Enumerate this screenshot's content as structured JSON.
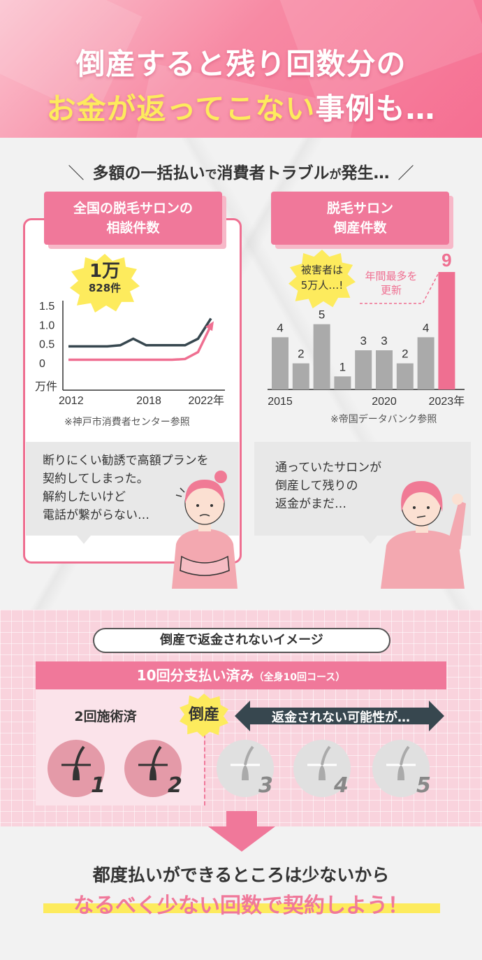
{
  "header": {
    "line1": "倒産すると残り回数分の",
    "line2_highlight": "お金が返ってこない",
    "line2_rest": "事例も…"
  },
  "subtitle": {
    "part1": "多額の一括払い",
    "part2": "で",
    "part3": "消費者トラブル",
    "part4": "が",
    "part5": "発生…"
  },
  "left_panel": {
    "tag_line1": "全国の脱毛サロンの",
    "tag_line2": "相談件数",
    "burst_big": "1万",
    "burst_small": "828件",
    "unit": "万件",
    "source": "※神戸市消費者センター参照",
    "speech": [
      "断りにくい勧誘で高額プランを",
      "契約してしまった。",
      "解約したいけど",
      "電話が繋がらない…"
    ]
  },
  "right_panel": {
    "tag_line1": "脱毛サロン",
    "tag_line2": "倒産件数",
    "burst_line1": "被害者は",
    "burst_line2": "5万人…!",
    "annot_line1": "年間最多を",
    "annot_line2": "更新",
    "source": "※帝国データバンク参照",
    "speech": [
      "通っていたサロンが",
      "倒産して残りの",
      "返金がまだ…"
    ]
  },
  "chart_data": [
    {
      "type": "line",
      "title": "全国の脱毛サロンの相談件数",
      "x_tick_labels": [
        "2012",
        "2018",
        "2022年"
      ],
      "y_tick_labels": [
        "1.5",
        "1.0",
        "0.5",
        "0"
      ],
      "ylabel": "万件",
      "ylim": [
        0,
        1.5
      ],
      "series": [
        {
          "x": [
            2012,
            2013,
            2014,
            2015,
            2016,
            2017,
            2018,
            2019,
            2020,
            2021,
            2022,
            2023
          ],
          "values": [
            0.45,
            0.45,
            0.45,
            0.45,
            0.48,
            0.65,
            0.48,
            0.48,
            0.48,
            0.48,
            0.65,
            1.18
          ]
        },
        {
          "x": [
            2012,
            2013,
            2014,
            2015,
            2016,
            2017,
            2018,
            2019,
            2020,
            2021,
            2022,
            2023
          ],
          "values": [
            0.1,
            0.1,
            0.1,
            0.1,
            0.1,
            0.1,
            0.1,
            0.1,
            0.1,
            0.12,
            0.3,
            1.0
          ]
        }
      ],
      "series_colors": [
        "#37474f",
        "#ef6f91"
      ]
    },
    {
      "type": "bar",
      "title": "脱毛サロン倒産件数",
      "categories": [
        "2015",
        "2016",
        "2017",
        "2018",
        "2019",
        "2020",
        "2021",
        "2022",
        "2023年"
      ],
      "x_tick_labels": [
        "2015",
        "2020",
        "2023年"
      ],
      "values": [
        4,
        2,
        5,
        1,
        3,
        3,
        2,
        4,
        9
      ],
      "bar_colors": [
        "#aaaaaa",
        "#aaaaaa",
        "#aaaaaa",
        "#aaaaaa",
        "#aaaaaa",
        "#aaaaaa",
        "#aaaaaa",
        "#aaaaaa",
        "#ef6f91"
      ],
      "ylim": [
        0,
        9
      ]
    }
  ],
  "image_section": {
    "pill": "倒産で返金されないイメージ",
    "band_main": "10回分支払い済み",
    "band_small": "（全身10回コース）",
    "done_label": "2回施術済",
    "bankrupt": "倒産",
    "refund": "返金されない可能性が…",
    "circles": [
      "1",
      "2",
      "3",
      "4",
      "5"
    ]
  },
  "bottom": {
    "line1": "都度払いができるところは少ないから",
    "line2": "なるべく少ない回数で契約しよう！"
  }
}
